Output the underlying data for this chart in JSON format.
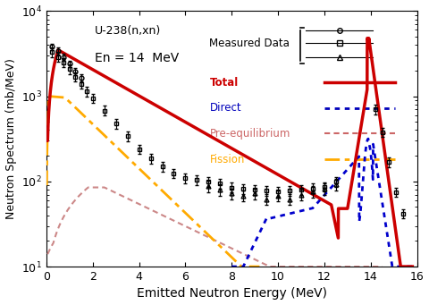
{
  "annotation1": "U-238(n,xn)",
  "annotation2": "En = 14  MeV",
  "xlabel": "Emitted Neutron Energy (MeV)",
  "ylabel": "Neutron Spectrum (mb/MeV)",
  "xlim": [
    0,
    16
  ],
  "ylim_log": [
    10,
    10000
  ],
  "colors": {
    "total": "#cc0000",
    "direct": "#0000cc",
    "preequil": "#cc8888",
    "fission": "#ffaa00"
  },
  "legend_labels": {
    "measured": "Measured Data",
    "total": "Total",
    "direct": "Direct",
    "preequil": "Pre-equilibrium",
    "fission": "Fission"
  },
  "legend_colors": {
    "total": "#cc0000",
    "direct": "#0000bb",
    "preequil": "#cc6666",
    "fission": "#ffaa00"
  }
}
